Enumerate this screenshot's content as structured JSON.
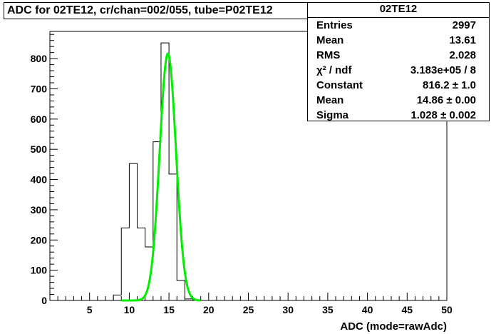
{
  "title": "ADC for 02TE12,  cr/chan=002/055,  tube=P02TE12",
  "stats": {
    "name": "02TE12",
    "rows": [
      {
        "key": "Entries",
        "value": "2997"
      },
      {
        "key": "Mean",
        "value": "13.61"
      },
      {
        "key": "RMS",
        "value": "2.028"
      },
      {
        "key": "χ² / ndf",
        "value": "3.183e+05 / 8"
      },
      {
        "key": "Constant",
        "value": "816.2 ± 1.0"
      },
      {
        "key": "Mean",
        "value": "14.86 ± 0.00"
      },
      {
        "key": "Sigma",
        "value": "1.028 ± 0.002"
      }
    ]
  },
  "chart_data": {
    "type": "histogram",
    "xlabel": "ADC (mode=rawAdc)",
    "ylabel": "",
    "xlim": [
      0,
      50
    ],
    "ylim": [
      0,
      890
    ],
    "xticks": [
      5,
      10,
      15,
      20,
      25,
      30,
      35,
      40,
      45,
      50
    ],
    "yticks": [
      0,
      100,
      200,
      300,
      400,
      500,
      600,
      700,
      800
    ],
    "bins": {
      "x_low": [
        8,
        9,
        10,
        11,
        12,
        13,
        14,
        15,
        16,
        17,
        18
      ],
      "x_high": [
        9,
        10,
        11,
        12,
        13,
        14,
        15,
        16,
        17,
        18,
        19
      ],
      "counts": [
        18,
        240,
        453,
        240,
        177,
        525,
        852,
        418,
        66,
        5,
        2
      ]
    },
    "fit": {
      "type": "gaussian",
      "constant": 816.2,
      "mean": 14.86,
      "sigma": 1.028,
      "range": [
        9,
        19
      ],
      "color": "#00ee00"
    },
    "colors": {
      "histogram": "#000000",
      "fit": "#00ee00"
    }
  }
}
